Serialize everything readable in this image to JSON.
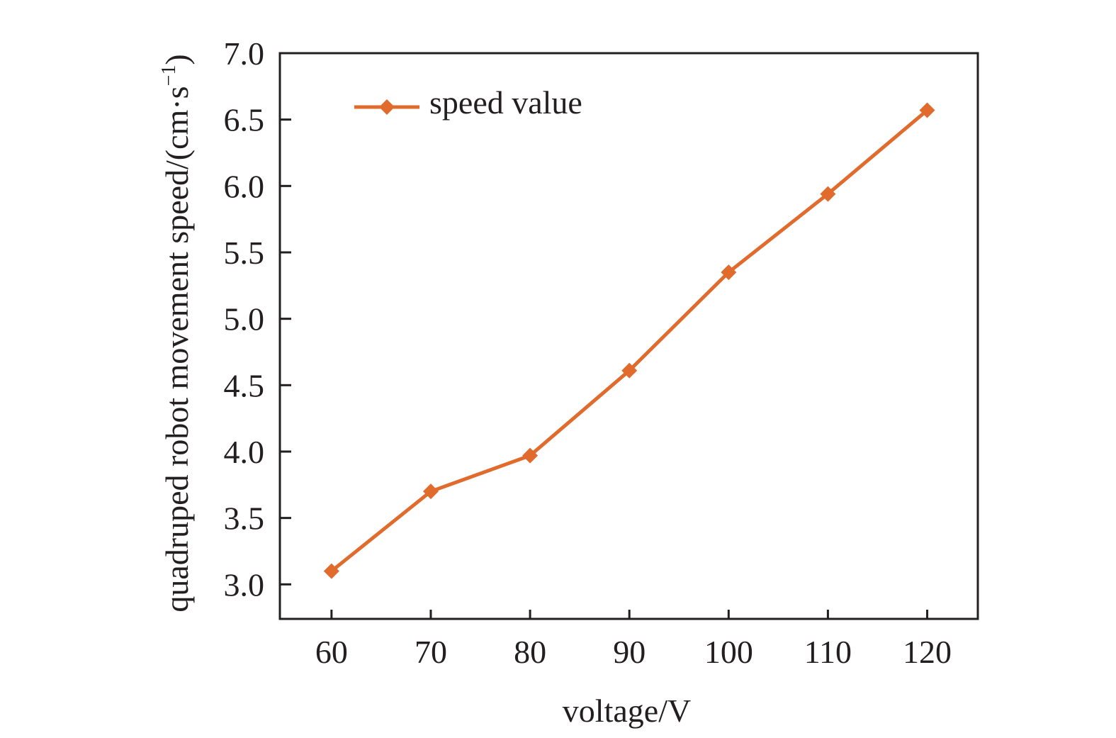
{
  "chart_data": {
    "type": "line",
    "title": "",
    "xlabel": "voltage/V",
    "ylabel": "quadruped robot movement speed/(cm·s⁻¹)",
    "ylabel_parts": {
      "main": "quadruped robot movement speed/(cm·s",
      "sup": "−1",
      "close": ")"
    },
    "x": [
      60,
      70,
      80,
      90,
      100,
      110,
      120
    ],
    "series": [
      {
        "name": "speed value",
        "values": [
          3.1,
          3.7,
          3.97,
          4.61,
          5.35,
          5.94,
          6.57
        ],
        "color": "#e06b2d",
        "marker": "diamond"
      }
    ],
    "xticks": [
      60,
      70,
      80,
      90,
      100,
      110,
      120
    ],
    "xtick_labels": [
      "60",
      "70",
      "80",
      "90",
      "100",
      "110",
      "120"
    ],
    "yticks": [
      3.0,
      3.5,
      4.0,
      4.5,
      5.0,
      5.5,
      6.0,
      6.5,
      7.0
    ],
    "ytick_labels": [
      "3.0",
      "3.5",
      "4.0",
      "4.5",
      "5.0",
      "5.5",
      "6.0",
      "6.5",
      "7.0"
    ],
    "xlim": [
      54.8,
      125.1
    ],
    "ylim": [
      2.74,
      7.0
    ],
    "grid": false,
    "legend": {
      "position": "top-left",
      "entries": [
        "speed value"
      ]
    }
  }
}
